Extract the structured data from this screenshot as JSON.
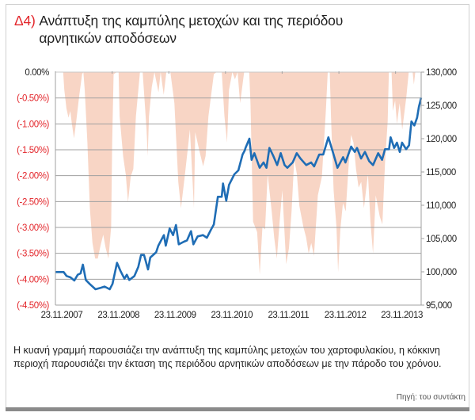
{
  "figure": {
    "number": "Δ4)",
    "title": "Ανάπτυξη της καμπύλης μετοχών και της περιόδου αρνητικών αποδόσεων",
    "caption": "Η κυανή γραμμή παρουσιάζει την ανάπτυξη της καμπύλης μετοχών του χαρτοφυλακίου, η κόκκινη περιοχή παρουσιάζει την έκταση της περιόδου αρνητικών αποδόσεων με την πάροδο του χρόνου.",
    "source": "Πηγή: του συντάκτη"
  },
  "colors": {
    "equity_line": "#1f6db5",
    "drawdown_area": "#f8d5c5",
    "accent_red": "#e3262b",
    "grid": "#a0a0a0"
  },
  "chart_data": {
    "type": "line",
    "title": "",
    "xlabel": "",
    "x_range": [
      "2007-11-23",
      "2014-05-07"
    ],
    "x_ticks": [
      "2007-11-23",
      "2008-11-23",
      "2009-11-23",
      "2010-11-23",
      "2011-11-23",
      "2012-11-23",
      "2013-11-23"
    ],
    "x_tick_labels": [
      "23.11.2007",
      "23.11.2008",
      "23.11.2009",
      "23.11.2010",
      "23.11.2011",
      "23.11.2012",
      "23.11.2013"
    ],
    "y_left": {
      "range": [
        -4.5,
        0
      ],
      "ticks": [
        0,
        -0.5,
        -1,
        -1.5,
        -2,
        -2.5,
        -3,
        -3.5,
        -4,
        -4.5
      ],
      "tick_labels": [
        "0.00%",
        "(-0.50%)",
        "(-1.00%)",
        "(-1.50%)",
        "(-2.00%)",
        "(-2.50%)",
        "(-3.00%)",
        "(-3.50%)",
        "(-4.00%)",
        "(-4.50%)"
      ]
    },
    "y_right": {
      "range": [
        95000,
        130000
      ],
      "ticks": [
        130000,
        125000,
        120000,
        115000,
        110000,
        105000,
        100000,
        95000
      ],
      "tick_labels": [
        "130,000",
        "125,000",
        "120,000",
        "115,000",
        "110,000",
        "105,000",
        "100,000",
        "95,000"
      ]
    },
    "grid": true,
    "legend": "none",
    "series": [
      {
        "kind": "area",
        "axis": "left",
        "unit": "%",
        "points": [
          [
            "2007-11-23",
            0
          ],
          [
            "2008-01-12",
            0
          ],
          [
            "2008-01-19",
            -0.34
          ],
          [
            "2008-02-02",
            -0.7
          ],
          [
            "2008-02-15",
            -0.88
          ],
          [
            "2008-02-27",
            -0.75
          ],
          [
            "2008-03-08",
            -1.0
          ],
          [
            "2008-03-22",
            -1.28
          ],
          [
            "2008-04-05",
            -0.95
          ],
          [
            "2008-04-25",
            -0.44
          ],
          [
            "2008-05-13",
            -0.04
          ],
          [
            "2008-05-21",
            0
          ],
          [
            "2008-05-30",
            -0.34
          ],
          [
            "2008-06-16",
            -1.36
          ],
          [
            "2008-07-02",
            -2.63
          ],
          [
            "2008-07-19",
            -3.3
          ],
          [
            "2008-08-05",
            -3.6
          ],
          [
            "2008-08-22",
            -3.6
          ],
          [
            "2008-09-09",
            -3.35
          ],
          [
            "2008-09-26",
            -3.14
          ],
          [
            "2008-10-12",
            -3.4
          ],
          [
            "2008-10-30",
            -3.6
          ],
          [
            "2008-11-16",
            -2.99
          ],
          [
            "2008-11-23",
            -1.36
          ],
          [
            "2008-12-02",
            -0.04
          ],
          [
            "2008-12-23",
            0
          ],
          [
            "2009-01-03",
            0
          ],
          [
            "2009-01-10",
            -0.85
          ],
          [
            "2009-02-01",
            -1.62
          ],
          [
            "2009-02-18",
            -1.97
          ],
          [
            "2009-03-05",
            -2.51
          ],
          [
            "2009-03-22",
            -2.02
          ],
          [
            "2009-04-08",
            -1.87
          ],
          [
            "2009-04-25",
            -0.85
          ],
          [
            "2009-05-21",
            0
          ],
          [
            "2009-06-07",
            0
          ],
          [
            "2009-06-15",
            -0.34
          ],
          [
            "2009-07-02",
            -1.11
          ],
          [
            "2009-07-10",
            -1.62
          ],
          [
            "2009-07-18",
            -0.85
          ],
          [
            "2009-08-05",
            -0.29
          ],
          [
            "2009-08-22",
            0
          ],
          [
            "2009-09-17",
            -0.39
          ],
          [
            "2009-10-01",
            0
          ],
          [
            "2009-10-21",
            -0.44
          ],
          [
            "2009-11-07",
            0
          ],
          [
            "2009-12-03",
            0
          ],
          [
            "2009-12-29",
            -0.6
          ],
          [
            "2010-01-23",
            -2.12
          ],
          [
            "2010-02-09",
            -2.63
          ],
          [
            "2010-03-05",
            -2.02
          ],
          [
            "2010-04-08",
            -1.11
          ],
          [
            "2010-05-04",
            -2.63
          ],
          [
            "2010-05-12",
            -1.16
          ],
          [
            "2010-06-07",
            -1.51
          ],
          [
            "2010-07-02",
            -1.82
          ],
          [
            "2010-07-18",
            -1.62
          ],
          [
            "2010-08-05",
            -0.85
          ],
          [
            "2010-09-09",
            -0.04
          ],
          [
            "2010-09-26",
            0
          ],
          [
            "2010-10-30",
            0
          ],
          [
            "2010-11-16",
            -0.85
          ],
          [
            "2010-12-03",
            -1.36
          ],
          [
            "2010-12-16",
            -0.34
          ],
          [
            "2011-01-06",
            0
          ],
          [
            "2011-01-23",
            -0.14
          ],
          [
            "2011-02-09",
            0
          ],
          [
            "2011-02-25",
            -0.6
          ],
          [
            "2011-03-23",
            0
          ],
          [
            "2011-04-25",
            0
          ],
          [
            "2011-05-03",
            -0.6
          ],
          [
            "2011-05-20",
            -2.89
          ],
          [
            "2011-06-15",
            -3.09
          ],
          [
            "2011-07-02",
            -3.91
          ],
          [
            "2011-07-19",
            -2.99
          ],
          [
            "2011-08-05",
            -3.04
          ],
          [
            "2011-08-22",
            -1.97
          ],
          [
            "2011-09-17",
            -2.69
          ],
          [
            "2011-10-03",
            -3.2
          ],
          [
            "2011-10-20",
            -3.6
          ],
          [
            "2011-11-07",
            -2.89
          ],
          [
            "2011-11-24",
            -2.28
          ],
          [
            "2011-12-19",
            -3.71
          ],
          [
            "2012-01-06",
            -3.4
          ],
          [
            "2012-01-23",
            -2.69
          ],
          [
            "2012-02-09",
            -1.67
          ],
          [
            "2012-02-26",
            -1.97
          ],
          [
            "2012-03-13",
            -2.58
          ],
          [
            "2012-04-08",
            -2.99
          ],
          [
            "2012-04-25",
            -3.19
          ],
          [
            "2012-05-12",
            -3.5
          ],
          [
            "2012-05-29",
            -3.3
          ],
          [
            "2012-06-15",
            -3.55
          ],
          [
            "2012-07-10",
            -2.38
          ],
          [
            "2012-08-05",
            -2.02
          ],
          [
            "2012-08-31",
            -0.75
          ],
          [
            "2012-09-12",
            0
          ],
          [
            "2012-09-25",
            0
          ],
          [
            "2012-10-03",
            -0.85
          ],
          [
            "2012-10-20",
            -2.28
          ],
          [
            "2012-11-07",
            -2.99
          ],
          [
            "2012-11-18",
            -3.86
          ],
          [
            "2012-12-02",
            -3.04
          ],
          [
            "2012-12-19",
            -2.53
          ],
          [
            "2013-01-06",
            -2.69
          ],
          [
            "2013-01-23",
            -1.87
          ],
          [
            "2013-02-09",
            -1.21
          ],
          [
            "2013-02-25",
            -1.36
          ],
          [
            "2013-03-13",
            -1.87
          ],
          [
            "2013-03-30",
            -2.23
          ],
          [
            "2013-04-16",
            -2.12
          ],
          [
            "2013-05-03",
            -2.63
          ],
          [
            "2013-05-29",
            -1.97
          ],
          [
            "2013-06-14",
            -2.89
          ],
          [
            "2013-07-01",
            -3.5
          ],
          [
            "2013-07-18",
            -2.38
          ],
          [
            "2013-08-13",
            -2.79
          ],
          [
            "2013-08-30",
            -2.94
          ],
          [
            "2013-09-16",
            -1.77
          ],
          [
            "2013-10-03",
            -0.95
          ],
          [
            "2013-10-11",
            0
          ],
          [
            "2013-10-28",
            0
          ],
          [
            "2013-11-06",
            -0.75
          ],
          [
            "2013-11-20",
            -0.55
          ],
          [
            "2013-12-02",
            -1.0
          ],
          [
            "2013-12-19",
            -0.6
          ],
          [
            "2014-01-05",
            -1.11
          ],
          [
            "2014-01-31",
            -0.49
          ],
          [
            "2014-02-16",
            0
          ],
          [
            "2014-03-13",
            0
          ],
          [
            "2014-03-21",
            -0.24
          ],
          [
            "2014-03-30",
            0
          ],
          [
            "2014-05-07",
            0
          ]
        ]
      },
      {
        "kind": "line",
        "axis": "right",
        "points": [
          [
            "2007-11-23",
            99960
          ],
          [
            "2008-01-15",
            99960
          ],
          [
            "2008-02-03",
            99370
          ],
          [
            "2008-02-28",
            99170
          ],
          [
            "2008-03-24",
            98690
          ],
          [
            "2008-04-15",
            99560
          ],
          [
            "2008-05-03",
            99760
          ],
          [
            "2008-05-18",
            101070
          ],
          [
            "2008-06-06",
            98770
          ],
          [
            "2008-07-01",
            98180
          ],
          [
            "2008-08-07",
            97380
          ],
          [
            "2008-09-09",
            97580
          ],
          [
            "2008-10-05",
            97780
          ],
          [
            "2008-11-07",
            97380
          ],
          [
            "2008-11-25",
            98180
          ],
          [
            "2008-12-24",
            101350
          ],
          [
            "2009-01-15",
            100160
          ],
          [
            "2009-02-10",
            98970
          ],
          [
            "2009-02-25",
            99560
          ],
          [
            "2009-03-13",
            98770
          ],
          [
            "2009-04-15",
            99370
          ],
          [
            "2009-05-10",
            100750
          ],
          [
            "2009-05-28",
            102540
          ],
          [
            "2009-06-16",
            102540
          ],
          [
            "2009-07-12",
            100360
          ],
          [
            "2009-07-26",
            102140
          ],
          [
            "2009-09-02",
            102930
          ],
          [
            "2009-09-16",
            103930
          ],
          [
            "2009-10-22",
            105510
          ],
          [
            "2009-11-03",
            103930
          ],
          [
            "2009-11-28",
            106510
          ],
          [
            "2009-12-20",
            105510
          ],
          [
            "2010-01-08",
            107020
          ],
          [
            "2010-01-26",
            104130
          ],
          [
            "2010-02-28",
            104520
          ],
          [
            "2010-03-20",
            104720
          ],
          [
            "2010-04-15",
            106110
          ],
          [
            "2010-04-30",
            104130
          ],
          [
            "2010-05-28",
            105320
          ],
          [
            "2010-07-01",
            105510
          ],
          [
            "2010-07-26",
            105120
          ],
          [
            "2010-08-21",
            106310
          ],
          [
            "2010-09-09",
            107110
          ],
          [
            "2010-10-05",
            111270
          ],
          [
            "2010-10-30",
            111270
          ],
          [
            "2010-11-07",
            113260
          ],
          [
            "2010-11-28",
            110680
          ],
          [
            "2010-12-16",
            113060
          ],
          [
            "2011-01-19",
            114640
          ],
          [
            "2011-02-14",
            115240
          ],
          [
            "2011-03-13",
            117620
          ],
          [
            "2011-03-27",
            118210
          ],
          [
            "2011-04-01",
            118610
          ],
          [
            "2011-04-26",
            120000
          ],
          [
            "2011-05-10",
            116820
          ],
          [
            "2011-05-28",
            117820
          ],
          [
            "2011-07-01",
            115630
          ],
          [
            "2011-07-26",
            116430
          ],
          [
            "2011-08-14",
            115630
          ],
          [
            "2011-09-02",
            118610
          ],
          [
            "2011-09-27",
            117420
          ],
          [
            "2011-10-22",
            116030
          ],
          [
            "2011-11-14",
            117820
          ],
          [
            "2011-12-09",
            116030
          ],
          [
            "2011-12-27",
            115630
          ],
          [
            "2012-01-30",
            116430
          ],
          [
            "2012-02-25",
            117820
          ],
          [
            "2012-03-20",
            117020
          ],
          [
            "2012-04-26",
            116030
          ],
          [
            "2012-05-28",
            116430
          ],
          [
            "2012-06-16",
            115830
          ],
          [
            "2012-07-19",
            117620
          ],
          [
            "2012-08-14",
            117620
          ],
          [
            "2012-09-16",
            120200
          ],
          [
            "2012-10-12",
            118210
          ],
          [
            "2012-11-14",
            115630
          ],
          [
            "2012-12-20",
            117220
          ],
          [
            "2013-01-04",
            116430
          ],
          [
            "2013-02-10",
            118810
          ],
          [
            "2013-03-05",
            118010
          ],
          [
            "2013-03-20",
            118610
          ],
          [
            "2013-04-15",
            117020
          ],
          [
            "2013-05-10",
            118010
          ],
          [
            "2013-06-06",
            116630
          ],
          [
            "2013-07-01",
            116030
          ],
          [
            "2013-08-03",
            117820
          ],
          [
            "2013-08-28",
            116820
          ],
          [
            "2013-09-16",
            118420
          ],
          [
            "2013-10-12",
            118420
          ],
          [
            "2013-10-22",
            120200
          ],
          [
            "2013-11-14",
            118610
          ],
          [
            "2013-12-02",
            119400
          ],
          [
            "2013-12-20",
            118010
          ],
          [
            "2014-01-04",
            119400
          ],
          [
            "2014-01-30",
            118420
          ],
          [
            "2014-02-18",
            119010
          ],
          [
            "2014-03-05",
            122580
          ],
          [
            "2014-03-24",
            121990
          ],
          [
            "2014-04-11",
            123180
          ],
          [
            "2014-04-22",
            124760
          ],
          [
            "2014-05-07",
            126150
          ]
        ]
      }
    ]
  }
}
